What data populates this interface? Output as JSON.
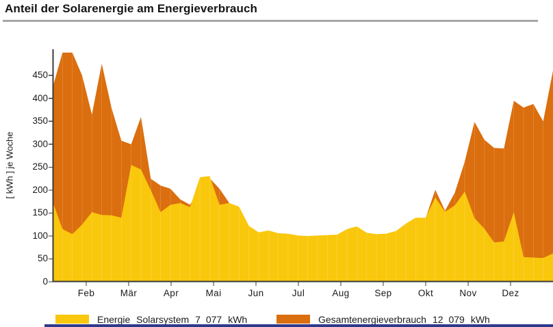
{
  "title": "Anteil der Solarenergie am Energieverbrauch",
  "colors": {
    "solar": "#F9C70C",
    "total": "#DB6E0E",
    "axis": "#3a3a3a",
    "title_rule": "#a6a6a6",
    "bottom_bar": "#2c3a8c",
    "text": "#1a1a1a"
  },
  "y_axis": {
    "label": "[ kWh ]  je Woche",
    "ticks": [
      0,
      50,
      100,
      150,
      200,
      250,
      300,
      350,
      400,
      450
    ]
  },
  "x_axis": {
    "months": [
      "Feb",
      "Mär",
      "Apr",
      "Mai",
      "Jun",
      "Jul",
      "Aug",
      "Sep",
      "Okt",
      "Nov",
      "Dez"
    ]
  },
  "legend": {
    "items": [
      {
        "name": "Energie  Solarsystem",
        "value": "7 077",
        "unit": "kWh",
        "color_key": "solar"
      },
      {
        "name": "Gesamtenergieverbrauch",
        "value": "12 079",
        "unit": "kWh",
        "color_key": "total"
      }
    ]
  },
  "chart_data": {
    "type": "area",
    "title": "Anteil der Solarenergie am Energieverbrauch",
    "xlabel": "",
    "ylabel": "[ kWh ] je Woche",
    "x_unit": "Woche",
    "n_points": 52,
    "x_tick_labels": [
      "Feb",
      "Mär",
      "Apr",
      "Mai",
      "Jun",
      "Jul",
      "Aug",
      "Sep",
      "Okt",
      "Nov",
      "Dez"
    ],
    "ylim": [
      0,
      507
    ],
    "grid": false,
    "legend_position": "bottom",
    "series": [
      {
        "name": "Energie Solarsystem",
        "annual_total": "7 077 kWh",
        "color_key": "solar",
        "values": [
          175,
          115,
          104,
          125,
          152,
          146,
          145,
          140,
          255,
          245,
          200,
          152,
          168,
          172,
          163,
          228,
          231,
          168,
          172,
          164,
          122,
          108,
          112,
          106,
          105,
          101,
          100,
          101,
          102,
          103,
          115,
          121,
          107,
          104,
          105,
          111,
          127,
          140,
          140,
          184,
          153,
          167,
          197,
          139,
          116,
          86,
          88,
          152,
          54,
          53,
          52,
          62
        ]
      },
      {
        "name": "Gesamtenergieverbrauch",
        "annual_total": "12 079 kWh",
        "color_key": "total",
        "values": [
          424,
          500,
          500,
          450,
          365,
          476,
          379,
          308,
          300,
          360,
          225,
          210,
          203,
          180,
          168,
          205,
          226,
          203,
          172,
          150,
          110,
          100,
          100,
          98,
          97,
          95,
          94,
          95,
          96,
          97,
          105,
          110,
          99,
          97,
          98,
          103,
          118,
          132,
          138,
          201,
          155,
          195,
          262,
          349,
          310,
          292,
          291,
          395,
          380,
          388,
          350,
          461
        ]
      }
    ]
  }
}
